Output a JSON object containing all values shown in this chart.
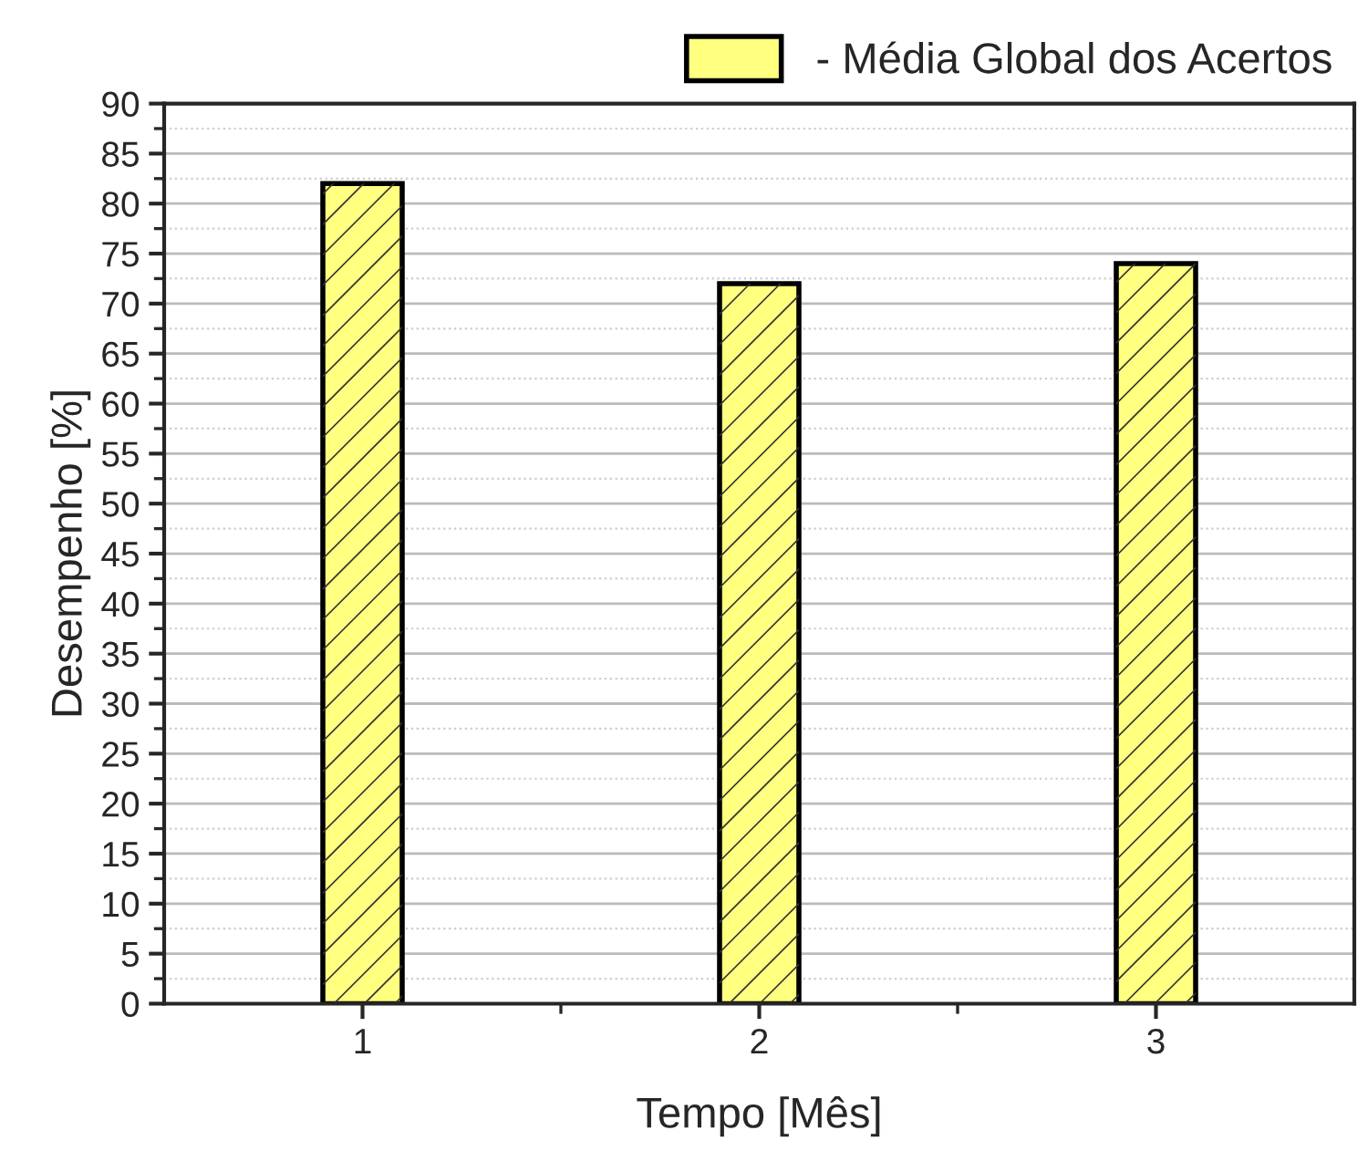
{
  "chart_data": {
    "type": "bar",
    "xlabel": "Tempo [Mês]",
    "ylabel": "Desempenho [%]",
    "categories": [
      "1",
      "2",
      "3"
    ],
    "series": [
      {
        "name": "- Média Global dos Acertos",
        "color": "#ffff80",
        "values": [
          82,
          72,
          74
        ]
      }
    ],
    "ylim": [
      0,
      90
    ],
    "yticks": [
      0,
      5,
      10,
      15,
      20,
      25,
      30,
      35,
      40,
      45,
      50,
      55,
      60,
      65,
      70,
      75,
      80,
      85,
      90
    ],
    "grid": "y",
    "legend": "top right"
  }
}
